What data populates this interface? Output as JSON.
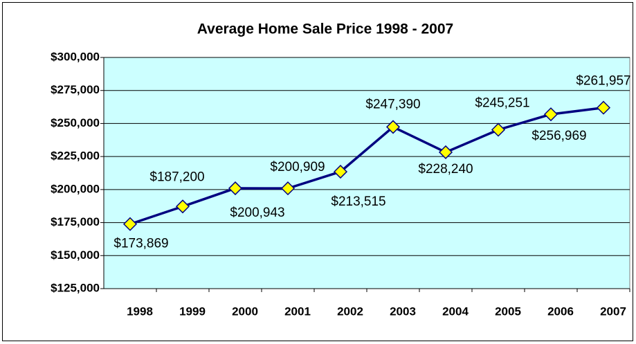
{
  "chart_data": {
    "type": "line",
    "title": "Average Home Sale Price 1998 - 2007",
    "categories": [
      "1998",
      "1999",
      "2000",
      "2001",
      "2002",
      "2003",
      "2004",
      "2005",
      "2006",
      "2007"
    ],
    "values": [
      173869,
      187200,
      200943,
      200909,
      213515,
      247390,
      228240,
      245251,
      256969,
      261957
    ],
    "value_labels": [
      "$173,869",
      "$187,200",
      "$200,943",
      "$200,909",
      "$213,515",
      "$247,390",
      "$228,240",
      "$245,251",
      "$256,969",
      "$261,957"
    ],
    "color": "#000080",
    "marker_color": "#ffff00",
    "background": "#ccffff",
    "ylim": [
      125000,
      300000
    ],
    "yticks": [
      {
        "value": 125000,
        "label": "$125,000"
      },
      {
        "value": 150000,
        "label": "$150,000"
      },
      {
        "value": 175000,
        "label": "$175,000"
      },
      {
        "value": 200000,
        "label": "$200,000"
      },
      {
        "value": 225000,
        "label": "$225,000"
      },
      {
        "value": 250000,
        "label": "$250,000"
      },
      {
        "value": 275000,
        "label": "$275,000"
      },
      {
        "value": 300000,
        "label": "$300,000"
      }
    ],
    "grid": true
  }
}
